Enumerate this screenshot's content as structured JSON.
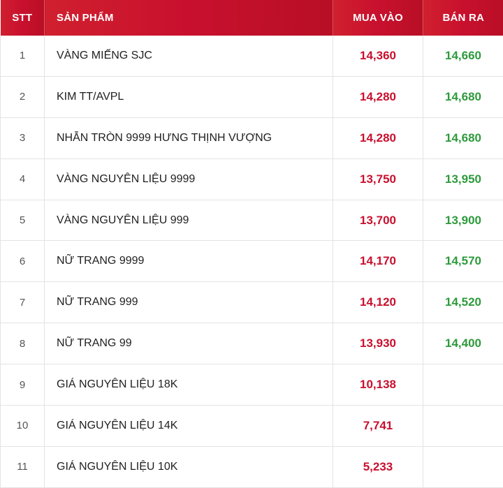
{
  "colors": {
    "header_bg": "#c8102e",
    "header_text": "#ffffff",
    "buy_price": "#c8102e",
    "sell_price": "#2e9a3c",
    "grid_line": "#e3e3e3"
  },
  "table": {
    "headers": {
      "stt": "STT",
      "product": "SẢN PHẨM",
      "buy": "MUA VÀO",
      "sell": "BÁN RA"
    },
    "rows": [
      {
        "stt": "1",
        "product": "VÀNG MIẾNG SJC",
        "buy": "14,360",
        "sell": "14,660"
      },
      {
        "stt": "2",
        "product": "KIM TT/AVPL",
        "buy": "14,280",
        "sell": "14,680"
      },
      {
        "stt": "3",
        "product": "NHẪN TRÒN 9999 HƯNG THỊNH VƯỢNG",
        "buy": "14,280",
        "sell": "14,680"
      },
      {
        "stt": "4",
        "product": "VÀNG NGUYÊN LIỆU 9999",
        "buy": "13,750",
        "sell": "13,950"
      },
      {
        "stt": "5",
        "product": "VÀNG NGUYÊN LIỆU 999",
        "buy": "13,700",
        "sell": "13,900"
      },
      {
        "stt": "6",
        "product": "NỮ TRANG 9999",
        "buy": "14,170",
        "sell": "14,570"
      },
      {
        "stt": "7",
        "product": "NỮ TRANG 999",
        "buy": "14,120",
        "sell": "14,520"
      },
      {
        "stt": "8",
        "product": "NỮ TRANG 99",
        "buy": "13,930",
        "sell": "14,400"
      },
      {
        "stt": "9",
        "product": "GIÁ NGUYÊN LIỆU 18K",
        "buy": "10,138",
        "sell": ""
      },
      {
        "stt": "10",
        "product": "GIÁ NGUYÊN LIỆU 14K",
        "buy": "7,741",
        "sell": ""
      },
      {
        "stt": "11",
        "product": "GIÁ NGUYÊN LIỆU 10K",
        "buy": "5,233",
        "sell": ""
      }
    ]
  }
}
